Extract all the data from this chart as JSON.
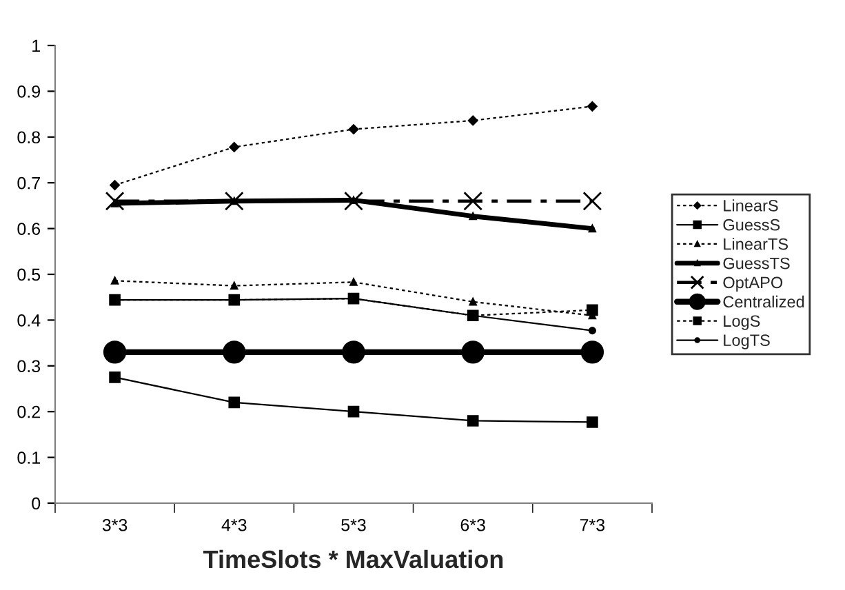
{
  "chart_data": {
    "type": "line",
    "xlabel": "TimeSlots * MaxValuation",
    "categories": [
      "3*3",
      "4*3",
      "5*3",
      "6*3",
      "7*3"
    ],
    "ylim": [
      0,
      1
    ],
    "yticks": [
      0,
      0.1,
      0.2,
      0.3,
      0.4,
      0.5,
      0.6,
      0.7,
      0.8,
      0.9,
      1
    ],
    "grid": false,
    "legend": "right",
    "series": [
      {
        "name": "LinearS",
        "color": "#000000",
        "marker": "diamond",
        "line_style": "dotted",
        "values": [
          0.695,
          0.778,
          0.817,
          0.836,
          0.867
        ]
      },
      {
        "name": "GuessS",
        "color": "#000000",
        "marker": "square",
        "line_style": "solid",
        "values": [
          0.275,
          0.22,
          0.2,
          0.18,
          0.177
        ]
      },
      {
        "name": "LinearTS",
        "color": "#000000",
        "marker": "triangle",
        "line_style": "dotted",
        "values": [
          0.486,
          0.475,
          0.483,
          0.44,
          0.41
        ]
      },
      {
        "name": "GuessTS",
        "color": "#000000",
        "marker": "triangle",
        "line_style": "solid",
        "values": [
          0.655,
          0.66,
          0.662,
          0.627,
          0.6
        ]
      },
      {
        "name": "OptAPO",
        "color": "#000000",
        "marker": "cross",
        "line_style": "dashed",
        "values": [
          0.66,
          0.66,
          0.66,
          0.66,
          0.66
        ]
      },
      {
        "name": "Centralized",
        "color": "#000000",
        "marker": "circle",
        "line_style": "solid",
        "values": [
          0.33,
          0.33,
          0.33,
          0.33,
          0.33
        ]
      },
      {
        "name": "LogS",
        "color": "#000000",
        "marker": "square",
        "line_style": "dotted",
        "values": [
          0.444,
          0.444,
          0.447,
          0.41,
          0.422
        ]
      },
      {
        "name": "LogTS",
        "color": "#000000",
        "marker": "circle",
        "line_style": "solid",
        "values": [
          0.444,
          0.444,
          0.447,
          0.41,
          0.377
        ]
      }
    ]
  }
}
